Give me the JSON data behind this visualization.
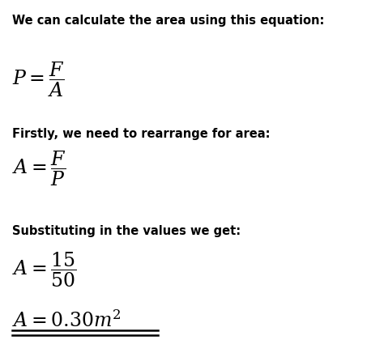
{
  "background_color": "#ffffff",
  "text_color": "#000000",
  "line1_bold": "We can calculate the area using this equation:",
  "line2_bold": "Firstly, we need to rearrange for area:",
  "line3_bold": "Substituting in the values we get:",
  "eq1": "$P = \\dfrac{F}{A}$",
  "eq2": "$A = \\dfrac{F}{P}$",
  "eq3a": "$A = \\dfrac{15}{50}$",
  "eq3b": "$A = 0.30m^{2}$",
  "figsize": [
    4.74,
    4.2
  ],
  "dpi": 100,
  "bold_fs": 10.5,
  "math_fs": 17
}
